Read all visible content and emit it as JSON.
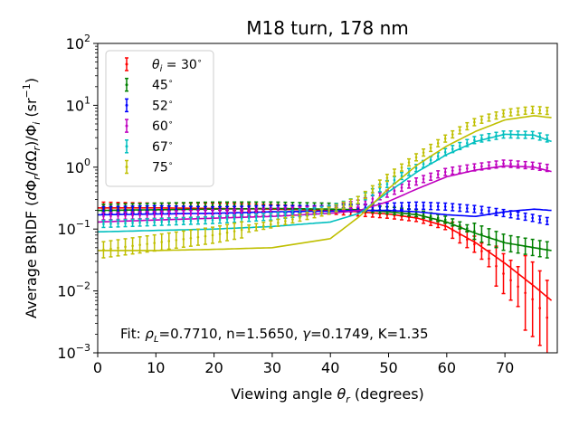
{
  "chart_data": {
    "type": "scatter",
    "title": "M18 turn, 178 nm",
    "xlabel": "Viewing angle θ_r (degrees)",
    "ylabel": "Average BRIDF (dΦ_r/dΩ_r)/Φ_i (sr^-1)",
    "xlim": [
      0,
      79
    ],
    "ylim": [
      0.001,
      100
    ],
    "yscale": "log",
    "grid": false,
    "legend_position": "upper-left",
    "annotation": "Fit: ρ_L=0.7710, n=1.5650, γ=0.1749, K=1.35",
    "x_ticks": [
      "0",
      "10",
      "20",
      "30",
      "40",
      "50",
      "60",
      "70"
    ],
    "y_ticks": [
      "10^-3",
      "10^-2",
      "10^-1",
      "10^0",
      "10^1",
      "10^2"
    ],
    "legend": [
      "θ_i = 30°",
      "45°",
      "52°",
      "60°",
      "67°",
      "75°"
    ],
    "series": [
      {
        "name": "θ_i = 30°",
        "color": "#ff0000",
        "data_points": [
          [
            0,
            0.24
          ],
          [
            10,
            0.23
          ],
          [
            20,
            0.23
          ],
          [
            30,
            0.22
          ],
          [
            40,
            0.2
          ],
          [
            45,
            0.185
          ],
          [
            50,
            0.17
          ],
          [
            55,
            0.15
          ],
          [
            60,
            0.11
          ],
          [
            65,
            0.055
          ],
          [
            70,
            0.018
          ],
          [
            75,
            0.007
          ],
          [
            78,
            0.003
          ]
        ],
        "fit_curve": [
          [
            0,
            0.22
          ],
          [
            10,
            0.22
          ],
          [
            20,
            0.215
          ],
          [
            30,
            0.21
          ],
          [
            40,
            0.2
          ],
          [
            45,
            0.19
          ],
          [
            50,
            0.175
          ],
          [
            55,
            0.15
          ],
          [
            60,
            0.11
          ],
          [
            65,
            0.06
          ],
          [
            70,
            0.028
          ],
          [
            75,
            0.012
          ],
          [
            78,
            0.007
          ]
        ]
      },
      {
        "name": "45°",
        "color": "#008000",
        "data_points": [
          [
            0,
            0.22
          ],
          [
            10,
            0.23
          ],
          [
            20,
            0.24
          ],
          [
            30,
            0.24
          ],
          [
            40,
            0.23
          ],
          [
            45,
            0.22
          ],
          [
            50,
            0.2
          ],
          [
            55,
            0.18
          ],
          [
            60,
            0.14
          ],
          [
            65,
            0.09
          ],
          [
            70,
            0.06
          ],
          [
            75,
            0.05
          ],
          [
            78,
            0.045
          ]
        ],
        "fit_curve": [
          [
            0,
            0.2
          ],
          [
            10,
            0.205
          ],
          [
            20,
            0.21
          ],
          [
            30,
            0.215
          ],
          [
            40,
            0.21
          ],
          [
            45,
            0.205
          ],
          [
            50,
            0.19
          ],
          [
            55,
            0.17
          ],
          [
            60,
            0.13
          ],
          [
            65,
            0.085
          ],
          [
            70,
            0.06
          ],
          [
            75,
            0.05
          ],
          [
            78,
            0.045
          ]
        ]
      },
      {
        "name": "52°",
        "color": "#0000ff",
        "data_points": [
          [
            0,
            0.2
          ],
          [
            10,
            0.21
          ],
          [
            20,
            0.2
          ],
          [
            30,
            0.21
          ],
          [
            40,
            0.21
          ],
          [
            45,
            0.22
          ],
          [
            50,
            0.23
          ],
          [
            55,
            0.24
          ],
          [
            60,
            0.23
          ],
          [
            65,
            0.21
          ],
          [
            70,
            0.18
          ],
          [
            75,
            0.15
          ],
          [
            78,
            0.13
          ]
        ],
        "fit_curve": [
          [
            0,
            0.17
          ],
          [
            10,
            0.175
          ],
          [
            20,
            0.18
          ],
          [
            30,
            0.19
          ],
          [
            40,
            0.195
          ],
          [
            45,
            0.2
          ],
          [
            50,
            0.2
          ],
          [
            55,
            0.19
          ],
          [
            60,
            0.17
          ],
          [
            65,
            0.16
          ],
          [
            70,
            0.19
          ],
          [
            75,
            0.21
          ],
          [
            78,
            0.2
          ]
        ]
      },
      {
        "name": "60°",
        "color": "#bf00bf",
        "data_points": [
          [
            0,
            0.16
          ],
          [
            10,
            0.17
          ],
          [
            20,
            0.18
          ],
          [
            30,
            0.19
          ],
          [
            40,
            0.21
          ],
          [
            45,
            0.26
          ],
          [
            50,
            0.38
          ],
          [
            55,
            0.6
          ],
          [
            60,
            0.85
          ],
          [
            65,
            1.0
          ],
          [
            70,
            1.15
          ],
          [
            75,
            1.05
          ],
          [
            78,
            0.95
          ]
        ],
        "fit_curve": [
          [
            0,
            0.13
          ],
          [
            10,
            0.14
          ],
          [
            20,
            0.15
          ],
          [
            30,
            0.16
          ],
          [
            40,
            0.18
          ],
          [
            45,
            0.2
          ],
          [
            50,
            0.28
          ],
          [
            55,
            0.45
          ],
          [
            60,
            0.7
          ],
          [
            65,
            0.9
          ],
          [
            70,
            1.05
          ],
          [
            75,
            1.0
          ],
          [
            78,
            0.85
          ]
        ]
      },
      {
        "name": "67°",
        "color": "#00bfbf",
        "data_points": [
          [
            0,
            0.12
          ],
          [
            10,
            0.13
          ],
          [
            20,
            0.14
          ],
          [
            30,
            0.16
          ],
          [
            40,
            0.21
          ],
          [
            45,
            0.3
          ],
          [
            50,
            0.55
          ],
          [
            55,
            1.0
          ],
          [
            60,
            1.8
          ],
          [
            65,
            2.8
          ],
          [
            70,
            3.4
          ],
          [
            75,
            3.3
          ],
          [
            78,
            2.8
          ]
        ],
        "fit_curve": [
          [
            0,
            0.09
          ],
          [
            10,
            0.095
          ],
          [
            20,
            0.1
          ],
          [
            30,
            0.11
          ],
          [
            40,
            0.13
          ],
          [
            45,
            0.18
          ],
          [
            50,
            0.4
          ],
          [
            55,
            0.85
          ],
          [
            60,
            1.6
          ],
          [
            65,
            2.6
          ],
          [
            70,
            3.4
          ],
          [
            75,
            3.3
          ],
          [
            78,
            2.6
          ]
        ]
      },
      {
        "name": "75°",
        "color": "#bfbf00",
        "data_points": [
          [
            0,
            0.045
          ],
          [
            10,
            0.06
          ],
          [
            20,
            0.08
          ],
          [
            30,
            0.12
          ],
          [
            40,
            0.2
          ],
          [
            45,
            0.3
          ],
          [
            50,
            0.7
          ],
          [
            55,
            1.5
          ],
          [
            60,
            3.0
          ],
          [
            65,
            5.5
          ],
          [
            70,
            7.5
          ],
          [
            75,
            8.5
          ],
          [
            78,
            8.0
          ]
        ],
        "fit_curve": [
          [
            0,
            0.045
          ],
          [
            10,
            0.045
          ],
          [
            20,
            0.047
          ],
          [
            30,
            0.05
          ],
          [
            40,
            0.07
          ],
          [
            45,
            0.16
          ],
          [
            50,
            0.45
          ],
          [
            55,
            1.1
          ],
          [
            60,
            2.2
          ],
          [
            65,
            3.8
          ],
          [
            70,
            5.8
          ],
          [
            75,
            6.8
          ],
          [
            78,
            6.3
          ]
        ]
      }
    ]
  }
}
